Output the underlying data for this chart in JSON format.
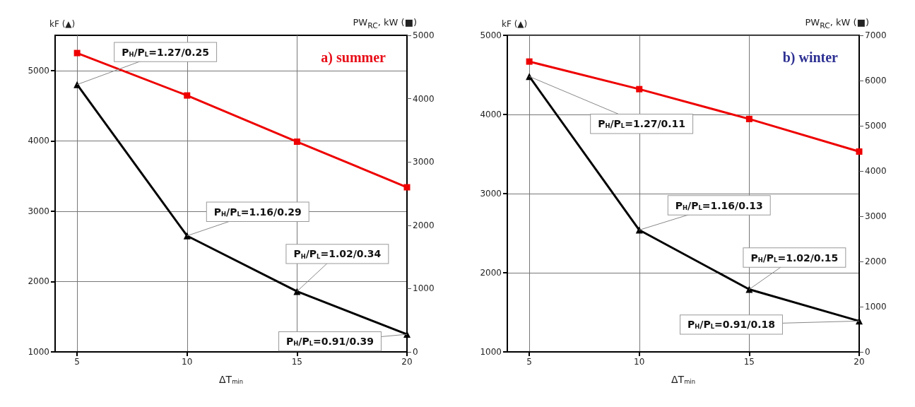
{
  "chart_data": [
    {
      "type": "line",
      "title": "a) summer",
      "xlabel": "ΔT$_{min}$",
      "ylabel": "kF (▲)",
      "y2label": "PW$_{RC}$, kW (■)",
      "x": [
        5,
        10,
        15,
        20
      ],
      "xlim": [
        4,
        20
      ],
      "xticks": [
        5,
        10,
        15,
        20
      ],
      "ylim": [
        1000,
        5500
      ],
      "yticks": [
        1000,
        2000,
        3000,
        4000,
        5000
      ],
      "y2lim": [
        0,
        5000
      ],
      "y2ticks": [
        0,
        1000,
        2000,
        3000,
        4000,
        5000
      ],
      "grid": true,
      "series": [
        {
          "color": "#000000",
          "marker": "triangle",
          "values": [
            4800,
            2650,
            1860,
            1250
          ]
        },
        {
          "color": "#ee0000",
          "marker": "square",
          "axis": "y2",
          "values": [
            4720,
            4050,
            3320,
            2600
          ]
        }
      ],
      "annotations": [
        {
          "text": "P$_{H}$/P$_{L}$=1.27/0.25",
          "x": 5,
          "y": 4800
        },
        {
          "text": "P$_{H}$/P$_{L}$=1.16/0.29",
          "x": 10,
          "y": 2650
        },
        {
          "text": "P$_{H}$/P$_{L}$=1.02/0.34",
          "x": 15,
          "y": 1860
        },
        {
          "text": "P$_{H}$/P$_{L}$=0.91/0.39",
          "x": 20,
          "y": 1250
        }
      ]
    },
    {
      "type": "line",
      "title": "b) winter",
      "xlabel": "ΔT$_{min}$",
      "ylabel": "kF (▲)",
      "y2label": "PW$_{RC}$, kW (■)",
      "x": [
        5,
        10,
        15,
        20
      ],
      "xlim": [
        4,
        20
      ],
      "xticks": [
        5,
        10,
        15,
        20
      ],
      "ylim": [
        1000,
        5000
      ],
      "yticks": [
        1000,
        2000,
        3000,
        4000,
        5000
      ],
      "y2lim": [
        0,
        7000
      ],
      "y2ticks": [
        0,
        1000,
        2000,
        3000,
        4000,
        5000,
        6000,
        7000
      ],
      "grid": true,
      "series": [
        {
          "color": "#000000",
          "marker": "triangle",
          "values": [
            4480,
            2540,
            1790,
            1390
          ]
        },
        {
          "color": "#ee0000",
          "marker": "square",
          "axis": "y2",
          "values": [
            6420,
            5810,
            5150,
            4430
          ]
        }
      ],
      "annotations": [
        {
          "text": "P$_{H}$/P$_{L}$=1.27/0.11",
          "x": 5,
          "y": 4480
        },
        {
          "text": "P$_{H}$/P$_{L}$=1.16/0.13",
          "x": 10,
          "y": 2540
        },
        {
          "text": "P$_{H}$/P$_{L}$=1.02/0.15",
          "x": 15,
          "y": 1790
        },
        {
          "text": "P$_{H}$/P$_{L}$=0.91/0.18",
          "x": 20,
          "y": 1390
        }
      ]
    }
  ]
}
